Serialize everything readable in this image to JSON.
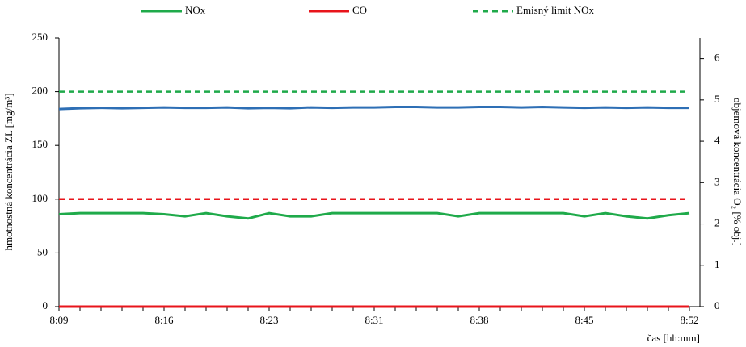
{
  "chart_data": {
    "type": "line",
    "categories": [
      "8:09",
      null,
      null,
      null,
      null,
      "8:16",
      null,
      null,
      null,
      null,
      "8:23",
      null,
      null,
      null,
      null,
      "8:31",
      null,
      null,
      null,
      null,
      "8:38",
      null,
      null,
      null,
      null,
      "8:45",
      null,
      null,
      null,
      null,
      "8:52"
    ],
    "series": [
      {
        "name": "NOx",
        "color": "#1faa4a",
        "dash": false,
        "values": [
          86,
          87,
          87,
          87,
          87,
          86,
          84,
          87,
          84,
          82,
          87,
          84,
          84,
          87,
          87,
          87,
          87,
          87,
          87,
          84,
          87,
          87,
          87,
          87,
          87,
          84,
          87,
          84,
          82,
          85,
          87
        ]
      },
      {
        "name": "CO",
        "color": "#e8141b",
        "dash": false,
        "values": [
          0,
          0,
          0,
          0,
          0,
          0,
          0,
          0,
          0,
          0,
          0,
          0,
          0,
          0,
          0,
          0,
          0,
          0,
          0,
          0,
          0,
          0,
          0,
          0,
          0,
          0,
          0,
          0,
          0,
          0,
          0
        ]
      },
      {
        "name": "Emisný limit NOx",
        "color": "#1faa4a",
        "dash": true,
        "values": [
          200,
          200,
          200,
          200,
          200,
          200,
          200,
          200,
          200,
          200,
          200,
          200,
          200,
          200,
          200,
          200,
          200,
          200,
          200,
          200,
          200,
          200,
          200,
          200,
          200,
          200,
          200,
          200,
          200,
          200,
          200
        ]
      },
      {
        "color": "#e8141b",
        "dash": true,
        "values": [
          100,
          100,
          100,
          100,
          100,
          100,
          100,
          100,
          100,
          100,
          100,
          100,
          100,
          100,
          100,
          100,
          100,
          100,
          100,
          100,
          100,
          100,
          100,
          100,
          100,
          100,
          100,
          100,
          100,
          100,
          100
        ]
      },
      {
        "color": "#2e6fb5",
        "dash": false,
        "axis": "y2",
        "values": [
          4.78,
          4.8,
          4.81,
          4.8,
          4.81,
          4.82,
          4.81,
          4.81,
          4.82,
          4.8,
          4.81,
          4.8,
          4.82,
          4.81,
          4.82,
          4.82,
          4.83,
          4.83,
          4.82,
          4.82,
          4.83,
          4.83,
          4.82,
          4.83,
          4.82,
          4.81,
          4.82,
          4.81,
          4.82,
          4.81,
          4.81
        ]
      }
    ],
    "ylabel": "hmotnostná koncentrácia ZL [mg/m³]",
    "y2label": "objemová koncentrácia O₂ [% obj.]",
    "xlabel": "čas [hh:mm]",
    "ylim": [
      0,
      250
    ],
    "yticks": [
      0,
      50,
      100,
      150,
      200,
      250
    ],
    "y2lim": [
      0,
      6.5
    ],
    "y2ticks": [
      0,
      1,
      2,
      3,
      4,
      5,
      6
    ],
    "legend": "top"
  }
}
